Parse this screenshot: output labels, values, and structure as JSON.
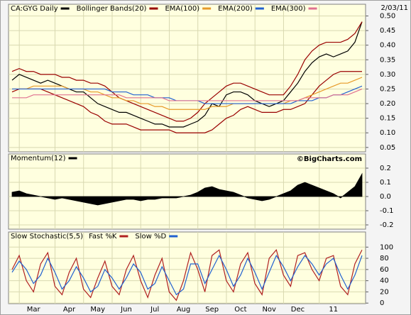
{
  "chart_data": [
    {
      "type": "line",
      "date": "2/03/11",
      "ylim": [
        0.035,
        0.54
      ],
      "yticks": [
        {
          "value": 0.5,
          "label": "0.50"
        },
        0.45,
        {
          "value": 0.4,
          "label": "0.40"
        },
        0.35,
        {
          "value": 0.3,
          "label": "0.30"
        },
        0.25,
        {
          "value": 0.2,
          "label": "0.20"
        },
        0.15,
        {
          "value": 0.1,
          "label": "0.10"
        },
        0.05
      ],
      "grid": true,
      "series": [
        {
          "name": "CA:GYG Daily",
          "color": "#000000",
          "values": [
            0.28,
            0.3,
            0.29,
            0.28,
            0.27,
            0.28,
            0.27,
            0.26,
            0.25,
            0.24,
            0.24,
            0.22,
            0.2,
            0.19,
            0.18,
            0.17,
            0.17,
            0.16,
            0.15,
            0.14,
            0.13,
            0.13,
            0.12,
            0.12,
            0.12,
            0.13,
            0.14,
            0.16,
            0.2,
            0.19,
            0.23,
            0.24,
            0.24,
            0.23,
            0.21,
            0.2,
            0.19,
            0.2,
            0.21,
            0.24,
            0.27,
            0.31,
            0.34,
            0.36,
            0.37,
            0.36,
            0.37,
            0.38,
            0.41,
            0.48
          ]
        },
        {
          "name": "Bollinger Bands(20)",
          "color": "#990000",
          "values": [
            0.31,
            0.32,
            0.31,
            0.31,
            0.3,
            0.3,
            0.3,
            0.29,
            0.29,
            0.28,
            0.28,
            0.27,
            0.27,
            0.26,
            0.24,
            0.22,
            0.21,
            0.2,
            0.19,
            0.18,
            0.17,
            0.16,
            0.15,
            0.14,
            0.14,
            0.15,
            0.17,
            0.2,
            0.22,
            0.24,
            0.26,
            0.27,
            0.27,
            0.26,
            0.25,
            0.24,
            0.23,
            0.23,
            0.23,
            0.26,
            0.3,
            0.35,
            0.38,
            0.4,
            0.41,
            0.41,
            0.41,
            0.42,
            0.44,
            0.48
          ]
        },
        {
          "color": "#990000",
          "values": [
            0.24,
            0.25,
            0.25,
            0.25,
            0.25,
            0.24,
            0.23,
            0.22,
            0.21,
            0.2,
            0.19,
            0.17,
            0.16,
            0.14,
            0.13,
            0.13,
            0.13,
            0.12,
            0.11,
            0.11,
            0.11,
            0.11,
            0.11,
            0.1,
            0.1,
            0.1,
            0.1,
            0.1,
            0.11,
            0.13,
            0.15,
            0.16,
            0.18,
            0.19,
            0.18,
            0.17,
            0.17,
            0.17,
            0.18,
            0.18,
            0.19,
            0.2,
            0.23,
            0.26,
            0.28,
            0.3,
            0.31,
            0.31,
            0.31,
            0.31
          ]
        },
        {
          "name": "EMA(100)",
          "color": "#e69a28",
          "values": [
            0.25,
            0.25,
            0.25,
            0.26,
            0.26,
            0.26,
            0.26,
            0.26,
            0.25,
            0.25,
            0.25,
            0.24,
            0.24,
            0.23,
            0.22,
            0.22,
            0.21,
            0.21,
            0.2,
            0.2,
            0.19,
            0.19,
            0.18,
            0.18,
            0.18,
            0.18,
            0.18,
            0.18,
            0.19,
            0.19,
            0.19,
            0.2,
            0.2,
            0.2,
            0.2,
            0.2,
            0.2,
            0.2,
            0.2,
            0.21,
            0.21,
            0.22,
            0.23,
            0.24,
            0.25,
            0.26,
            0.27,
            0.27,
            0.28,
            0.29
          ]
        },
        {
          "name": "EMA(200)",
          "color": "#2060d0",
          "values": [
            0.25,
            0.25,
            0.25,
            0.25,
            0.25,
            0.25,
            0.25,
            0.25,
            0.25,
            0.25,
            0.25,
            0.25,
            0.25,
            0.25,
            0.24,
            0.24,
            0.24,
            0.23,
            0.23,
            0.23,
            0.22,
            0.22,
            0.22,
            0.21,
            0.21,
            0.21,
            0.21,
            0.2,
            0.2,
            0.2,
            0.2,
            0.2,
            0.2,
            0.2,
            0.2,
            0.2,
            0.2,
            0.2,
            0.2,
            0.2,
            0.21,
            0.21,
            0.21,
            0.22,
            0.22,
            0.23,
            0.23,
            0.24,
            0.25,
            0.26
          ]
        },
        {
          "name": "EMA(300)",
          "color": "#e07090",
          "values": [
            0.22,
            0.22,
            0.22,
            0.23,
            0.23,
            0.23,
            0.23,
            0.23,
            0.23,
            0.23,
            0.23,
            0.23,
            0.23,
            0.23,
            0.23,
            0.23,
            0.22,
            0.22,
            0.22,
            0.22,
            0.22,
            0.22,
            0.21,
            0.21,
            0.21,
            0.21,
            0.21,
            0.21,
            0.21,
            0.21,
            0.21,
            0.21,
            0.21,
            0.21,
            0.21,
            0.21,
            0.21,
            0.21,
            0.21,
            0.21,
            0.21,
            0.22,
            0.22,
            0.22,
            0.22,
            0.23,
            0.23,
            0.23,
            0.24,
            0.25
          ]
        }
      ]
    },
    {
      "type": "area",
      "watermark": "©BigCharts.com",
      "ylim": [
        -0.23,
        0.3
      ],
      "yticks": [
        0.2,
        0.1,
        {
          "value": 0,
          "label": "0.0"
        },
        -0.1,
        -0.2
      ],
      "grid": true,
      "series": [
        {
          "name": "Momentum(12)",
          "color": "#000000",
          "values": [
            0.03,
            0.04,
            0.02,
            0.01,
            0.0,
            -0.01,
            -0.02,
            -0.01,
            -0.02,
            -0.03,
            -0.04,
            -0.05,
            -0.06,
            -0.05,
            -0.04,
            -0.03,
            -0.02,
            -0.02,
            -0.03,
            -0.02,
            -0.02,
            -0.01,
            -0.01,
            -0.01,
            0.0,
            0.01,
            0.03,
            0.06,
            0.07,
            0.05,
            0.04,
            0.03,
            0.01,
            -0.01,
            -0.02,
            -0.03,
            -0.02,
            0.0,
            0.02,
            0.04,
            0.08,
            0.1,
            0.08,
            0.06,
            0.04,
            0.02,
            -0.01,
            0.03,
            0.07,
            0.16
          ]
        }
      ]
    },
    {
      "type": "line",
      "title": "Slow Stochastic(5,5)",
      "ylim": [
        -1,
        127
      ],
      "yticks": [
        100,
        80,
        60,
        40,
        20,
        0
      ],
      "grid": true,
      "categories": [
        null,
        null,
        null,
        "Mar",
        null,
        null,
        null,
        null,
        "Apr",
        null,
        null,
        null,
        "May",
        null,
        null,
        null,
        "Jun",
        null,
        null,
        null,
        "Jul",
        null,
        null,
        null,
        "Aug",
        null,
        null,
        null,
        "Sep",
        null,
        null,
        null,
        "Oct",
        null,
        null,
        null,
        "Nov",
        null,
        null,
        null,
        "Dec",
        null,
        null,
        null,
        null,
        "11",
        null,
        null,
        null,
        null
      ],
      "series": [
        {
          "name": "Fast %K",
          "color": "#b02020",
          "values": [
            60,
            85,
            40,
            20,
            70,
            90,
            30,
            15,
            55,
            80,
            25,
            10,
            45,
            75,
            30,
            15,
            60,
            85,
            40,
            10,
            50,
            80,
            20,
            5,
            40,
            90,
            60,
            20,
            85,
            95,
            40,
            20,
            70,
            90,
            35,
            15,
            80,
            95,
            50,
            30,
            85,
            90,
            60,
            40,
            80,
            85,
            30,
            15,
            70,
            95
          ]
        },
        {
          "name": "Slow %D",
          "color": "#2060d0",
          "values": [
            55,
            75,
            60,
            35,
            50,
            80,
            55,
            25,
            40,
            65,
            45,
            20,
            30,
            60,
            45,
            25,
            45,
            70,
            55,
            25,
            35,
            65,
            40,
            15,
            25,
            70,
            70,
            35,
            60,
            85,
            60,
            30,
            50,
            80,
            55,
            25,
            55,
            85,
            65,
            40,
            65,
            85,
            70,
            50,
            70,
            80,
            50,
            25,
            50,
            85
          ]
        }
      ]
    }
  ]
}
